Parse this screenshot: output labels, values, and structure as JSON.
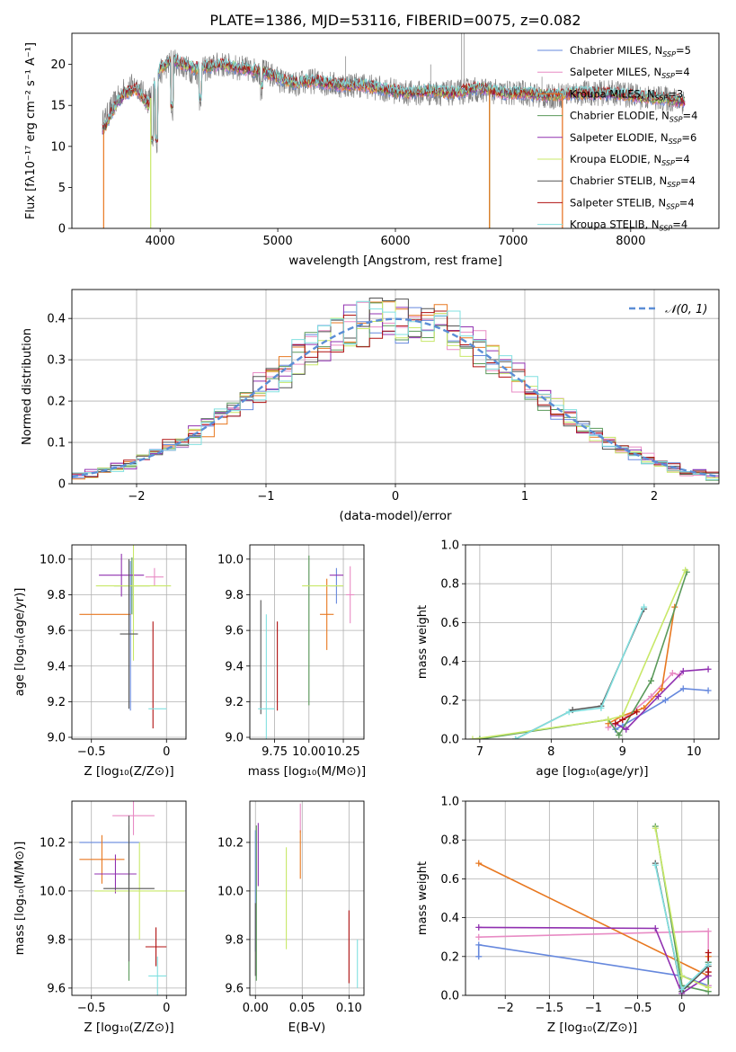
{
  "figure_title": "PLATE=1386, MJD=53116, FIBERID=0075, z=0.082",
  "model_names": [
    "Chabrier MILES",
    "Salpeter MILES",
    "Kroupa MILES",
    "Chabrier ELODIE",
    "Salpeter ELODIE",
    "Kroupa ELODIE",
    "Chabrier STELIB",
    "Salpeter STELIB",
    "Kroupa STELIB"
  ],
  "model_colors": [
    "#6688dd",
    "#e88bc4",
    "#e87820",
    "#5a9a5a",
    "#9030b0",
    "#c8e868",
    "#555555",
    "#b01010",
    "#80e0e0"
  ],
  "chart_data": [
    {
      "id": "spectrum",
      "type": "line",
      "xlabel": "wavelength [Angstrom, rest frame]",
      "ylabel": "Flux [fλ10⁻¹⁷ erg cm⁻² s⁻¹ A⁻¹]",
      "xlim": [
        3250,
        8750
      ],
      "ylim": [
        0,
        23.8
      ],
      "xticks": [
        4000,
        5000,
        6000,
        7000,
        8000
      ],
      "yticks": [
        0,
        5,
        10,
        15,
        20
      ],
      "grid": false,
      "legend_position": "right",
      "legend": [
        {
          "name": "Chabrier MILES",
          "nssp": "5"
        },
        {
          "name": "Salpeter MILES",
          "nssp": "4"
        },
        {
          "name": "Kroupa MILES",
          "nssp": "3"
        },
        {
          "name": "Chabrier ELODIE",
          "nssp": "4"
        },
        {
          "name": "Salpeter ELODIE",
          "nssp": "6"
        },
        {
          "name": "Kroupa ELODIE",
          "nssp": "4"
        },
        {
          "name": "Chabrier STELIB",
          "nssp": "4"
        },
        {
          "name": "Salpeter STELIB",
          "nssp": "4"
        },
        {
          "name": "Kroupa STELIB",
          "nssp": "4"
        }
      ],
      "nssp_label": "N",
      "nssp_sub": "SSP",
      "observed_continuum": [
        [
          3520,
          13
        ],
        [
          3600,
          15
        ],
        [
          3700,
          17
        ],
        [
          3800,
          17.5
        ],
        [
          3900,
          15.5
        ],
        [
          4000,
          19
        ],
        [
          4100,
          20.5
        ],
        [
          4300,
          19
        ],
        [
          4500,
          20
        ],
        [
          4700,
          19.5
        ],
        [
          4900,
          19
        ],
        [
          5100,
          17.5
        ],
        [
          5300,
          18
        ],
        [
          5500,
          17.5
        ],
        [
          5700,
          17.5
        ],
        [
          5900,
          17
        ],
        [
          6100,
          16.5
        ],
        [
          6300,
          16.5
        ],
        [
          6500,
          16.5
        ],
        [
          6700,
          17
        ],
        [
          6900,
          16.5
        ],
        [
          7100,
          16.5
        ],
        [
          7300,
          16
        ],
        [
          7500,
          16.5
        ],
        [
          7700,
          16.5
        ],
        [
          7900,
          16.5
        ],
        [
          8100,
          16
        ],
        [
          8300,
          15.8
        ],
        [
          8450,
          15.5
        ]
      ],
      "model_continuum": [
        [
          3520,
          12
        ],
        [
          3600,
          14.5
        ],
        [
          3700,
          16.5
        ],
        [
          3800,
          17
        ],
        [
          3900,
          15
        ],
        [
          4000,
          19.5
        ],
        [
          4100,
          20.5
        ],
        [
          4300,
          19.5
        ],
        [
          4500,
          20
        ],
        [
          4700,
          19.5
        ],
        [
          4900,
          19
        ],
        [
          5100,
          17.8
        ],
        [
          5300,
          18
        ],
        [
          5500,
          17.5
        ],
        [
          5700,
          17.5
        ],
        [
          5900,
          17
        ],
        [
          6100,
          16.5
        ],
        [
          6300,
          16.8
        ],
        [
          6500,
          16.5
        ],
        [
          6700,
          17.2
        ],
        [
          6900,
          16.5
        ],
        [
          7100,
          16.5
        ],
        [
          7300,
          16.2
        ],
        [
          7500,
          16.4
        ],
        [
          7700,
          16.5
        ],
        [
          7900,
          16.4
        ],
        [
          8100,
          16
        ],
        [
          8300,
          15.8
        ],
        [
          8450,
          15.5
        ]
      ],
      "absorption_lines": [
        [
          3934,
          9
        ],
        [
          3969,
          9
        ],
        [
          4102,
          13
        ],
        [
          4340,
          14
        ],
        [
          4861,
          15.5
        ],
        [
          5175,
          15.5
        ],
        [
          5890,
          15.3
        ],
        [
          6563,
          15.5
        ],
        [
          6717,
          15.5
        ]
      ],
      "emission_lines": [
        [
          6563,
          23.8
        ],
        [
          6583,
          23.8
        ],
        [
          5577,
          21
        ],
        [
          6300,
          20
        ],
        [
          7246,
          18.5
        ]
      ],
      "model_drops": [
        {
          "model": 2,
          "x": 3520,
          "to": 0
        },
        {
          "model": 5,
          "x": 3920,
          "to": 0
        },
        {
          "model": 3,
          "x": 6800,
          "to": 0
        },
        {
          "model": 2,
          "x": 6800,
          "to": 0
        },
        {
          "model": 1,
          "x": 7420,
          "to": 0
        },
        {
          "model": 2,
          "x": 7420,
          "to": 0
        }
      ]
    },
    {
      "id": "residuals",
      "type": "histogram",
      "xlabel": "(data-model)/error",
      "ylabel": "Normed distribution",
      "xlim": [
        -2.5,
        2.5
      ],
      "ylim": [
        0,
        0.47
      ],
      "xticks": [
        -2,
        -1,
        0,
        1,
        2
      ],
      "yticks": [
        0,
        0.1,
        0.2,
        0.3,
        0.4
      ],
      "grid": true,
      "legend_position": "top-right",
      "normal_label": "𝒩(0, 1)",
      "bin_width": 0.1,
      "bin_start": -2.5
    },
    {
      "id": "z-age",
      "type": "errorbar",
      "xlabel": "Z [log₁₀(Z/Z⊙)]",
      "ylabel": "age  [log₁₀(age/yr)]",
      "xlim": [
        -0.63,
        0.13
      ],
      "ylim": [
        8.99,
        10.08
      ],
      "xticks": [
        -0.5,
        0.0
      ],
      "yticks": [
        9.0,
        9.2,
        9.4,
        9.6,
        9.8,
        10.0
      ],
      "grid": true,
      "points": [
        {
          "x": -0.24,
          "y": 9.57,
          "xerr": 0.0,
          "yerr": 0.42
        },
        {
          "x": -0.08,
          "y": 9.9,
          "xerr": 0.06,
          "yerr": 0.05
        },
        {
          "x": -0.41,
          "y": 9.69,
          "xerr": 0.17,
          "yerr": 0.0
        },
        {
          "x": -0.23,
          "y": 9.85,
          "xerr": 0.12,
          "yerr": 0.16
        },
        {
          "x": -0.3,
          "y": 9.91,
          "xerr": 0.15,
          "yerr": 0.12
        },
        {
          "x": -0.22,
          "y": 9.85,
          "xerr": 0.25,
          "yerr": 0.42
        },
        {
          "x": -0.25,
          "y": 9.58,
          "xerr": 0.06,
          "yerr": 0.42
        },
        {
          "x": -0.09,
          "y": 9.35,
          "xerr": 0.0,
          "yerr": 0.3
        },
        {
          "x": -0.06,
          "y": 9.16,
          "xerr": 0.06,
          "yerr": 0.0
        }
      ]
    },
    {
      "id": "mass-age",
      "type": "errorbar",
      "xlabel": "mass [log₁₀(M/M⊙)]",
      "ylabel": "",
      "xlim": [
        9.57,
        10.4
      ],
      "ylim": [
        8.99,
        10.08
      ],
      "xticks": [
        9.75,
        10.0,
        10.25
      ],
      "xticklabels": [
        "9.75",
        "10.00",
        "10.25"
      ],
      "yticks": [
        9.0,
        9.2,
        9.4,
        9.6,
        9.8,
        10.0
      ],
      "grid": true,
      "points": [
        {
          "x": 10.2,
          "y": 9.85,
          "xerr": 0.05,
          "yerr": 0.1
        },
        {
          "x": 10.3,
          "y": 9.8,
          "xerr": 0.03,
          "yerr": 0.16
        },
        {
          "x": 10.13,
          "y": 9.69,
          "xerr": 0.05,
          "yerr": 0.2
        },
        {
          "x": 10.0,
          "y": 9.6,
          "xerr": 0.0,
          "yerr": 0.42
        },
        {
          "x": 10.2,
          "y": 9.91,
          "xerr": 0.05,
          "yerr": 0.0
        },
        {
          "x": 10.1,
          "y": 9.85,
          "xerr": 0.15,
          "yerr": 0.0
        },
        {
          "x": 9.65,
          "y": 9.45,
          "xerr": 0.0,
          "yerr": 0.32
        },
        {
          "x": 9.77,
          "y": 9.4,
          "xerr": 0.0,
          "yerr": 0.25
        },
        {
          "x": 9.69,
          "y": 9.16,
          "xerr": 0.06,
          "yerr": 0.53
        }
      ]
    },
    {
      "id": "age-massweight",
      "type": "line",
      "xlabel": "age  [log₁₀(age/yr)]",
      "ylabel": "mass weight",
      "xlim": [
        6.8,
        10.35
      ],
      "ylim": [
        0,
        1.0
      ],
      "xticks": [
        7,
        8,
        9,
        10
      ],
      "yticks": [
        0,
        0.2,
        0.4,
        0.6,
        0.8,
        1.0
      ],
      "grid": true,
      "series": [
        {
          "model": 0,
          "x": [
            8.9,
            9.0,
            9.6,
            9.85,
            10.2
          ],
          "y": [
            0.05,
            0.07,
            0.2,
            0.26,
            0.25
          ]
        },
        {
          "model": 1,
          "x": [
            8.8,
            9.0,
            9.4,
            9.7,
            9.8
          ],
          "y": [
            0.06,
            0.1,
            0.22,
            0.34,
            0.33
          ]
        },
        {
          "model": 2,
          "x": [
            8.8,
            9.0,
            9.3,
            9.55,
            9.73
          ],
          "y": [
            0.08,
            0.12,
            0.16,
            0.26,
            0.68
          ]
        },
        {
          "model": 3,
          "x": [
            7.0,
            8.8,
            8.95,
            9.4,
            9.9
          ],
          "y": [
            0.0,
            0.1,
            0.02,
            0.3,
            0.86
          ]
        },
        {
          "model": 4,
          "x": [
            8.9,
            9.05,
            9.5,
            9.85,
            10.2
          ],
          "y": [
            0.08,
            0.05,
            0.22,
            0.35,
            0.36
          ]
        },
        {
          "model": 5,
          "x": [
            6.9,
            8.8,
            9.0,
            9.88
          ],
          "y": [
            0.0,
            0.1,
            0.12,
            0.87
          ]
        },
        {
          "model": 6,
          "x": [
            7.5,
            8.3,
            8.7,
            9.3
          ],
          "y": [
            0.0,
            0.15,
            0.17,
            0.67
          ]
        },
        {
          "model": 7,
          "x": [
            8.9,
            9.0,
            9.2
          ],
          "y": [
            0.08,
            0.1,
            0.14
          ]
        },
        {
          "model": 8,
          "x": [
            7.5,
            8.25,
            8.7,
            9.3
          ],
          "y": [
            0.0,
            0.14,
            0.16,
            0.68
          ]
        }
      ]
    },
    {
      "id": "z-mass",
      "type": "errorbar",
      "xlabel": "Z [log₁₀(Z/Z⊙)]",
      "ylabel": "mass [log₁₀(M/M⊙)]",
      "xlim": [
        -0.63,
        0.13
      ],
      "ylim": [
        9.57,
        10.37
      ],
      "xticks": [
        -0.5,
        0.0
      ],
      "yticks": [
        9.6,
        9.8,
        10.0,
        10.2
      ],
      "grid": true,
      "points": [
        {
          "x": -0.38,
          "y": 10.2,
          "xerr": 0.2,
          "yerr": 0.0
        },
        {
          "x": -0.22,
          "y": 10.31,
          "xerr": 0.14,
          "yerr": 0.08
        },
        {
          "x": -0.43,
          "y": 10.13,
          "xerr": 0.15,
          "yerr": 0.1
        },
        {
          "x": -0.25,
          "y": 9.95,
          "xerr": 0.0,
          "yerr": 0.32
        },
        {
          "x": -0.34,
          "y": 10.07,
          "xerr": 0.14,
          "yerr": 0.08
        },
        {
          "x": -0.18,
          "y": 10.0,
          "xerr": 0.3,
          "yerr": 0.2
        },
        {
          "x": -0.25,
          "y": 10.01,
          "xerr": 0.17,
          "yerr": 0.3
        },
        {
          "x": -0.07,
          "y": 9.77,
          "xerr": 0.07,
          "yerr": 0.08
        },
        {
          "x": -0.06,
          "y": 9.65,
          "xerr": 0.06,
          "yerr": 0.08
        }
      ]
    },
    {
      "id": "ebv-mass",
      "type": "errorbar",
      "xlabel": "E(B-V)",
      "ylabel": "",
      "xlim": [
        -0.006,
        0.116
      ],
      "ylim": [
        9.57,
        10.37
      ],
      "xticks": [
        0.0,
        0.05,
        0.1
      ],
      "xticklabels": [
        "0.00",
        "0.05",
        "0.10"
      ],
      "yticks": [
        9.6,
        9.8,
        10.0,
        10.2
      ],
      "grid": true,
      "points": [
        {
          "x": 0.0,
          "y": 10.0,
          "xerr": 0.0,
          "yerr": 0.25
        },
        {
          "x": 0.048,
          "y": 10.3,
          "xerr": 0.0,
          "yerr": 0.06
        },
        {
          "x": 0.048,
          "y": 10.15,
          "xerr": 0.0,
          "yerr": 0.1
        },
        {
          "x": 0.001,
          "y": 9.95,
          "xerr": 0.0,
          "yerr": 0.32
        },
        {
          "x": 0.003,
          "y": 10.15,
          "xerr": 0.0,
          "yerr": 0.13
        },
        {
          "x": 0.033,
          "y": 9.97,
          "xerr": 0.0,
          "yerr": 0.21
        },
        {
          "x": 0.0,
          "y": 9.8,
          "xerr": 0.0,
          "yerr": 0.15
        },
        {
          "x": 0.1,
          "y": 9.77,
          "xerr": 0.0,
          "yerr": 0.15
        },
        {
          "x": 0.109,
          "y": 9.7,
          "xerr": 0.0,
          "yerr": 0.1
        }
      ]
    },
    {
      "id": "z-massweight",
      "type": "line",
      "xlabel": "Z [log₁₀(Z/Z⊙)]",
      "ylabel": "mass weight",
      "xlim": [
        -2.45,
        0.42
      ],
      "ylim": [
        0,
        1.0
      ],
      "xticks": [
        -2.0,
        -1.5,
        -1.0,
        -0.5,
        0.0
      ],
      "yticks": [
        0,
        0.2,
        0.4,
        0.6,
        0.8,
        1.0
      ],
      "grid": true,
      "series": [
        {
          "model": 0,
          "x": [
            -2.3,
            -2.3,
            0.0,
            0.3,
            0.3
          ],
          "y": [
            0.2,
            0.26,
            0.1,
            0.05,
            0.17
          ]
        },
        {
          "model": 1,
          "x": [
            -2.3,
            0.3,
            0.3
          ],
          "y": [
            0.3,
            0.33,
            0.05
          ]
        },
        {
          "model": 2,
          "x": [
            -2.3,
            0.3,
            0.3
          ],
          "y": [
            0.68,
            0.1,
            0.2
          ]
        },
        {
          "model": 3,
          "x": [
            -0.3,
            0.0,
            0.3,
            0.3
          ],
          "y": [
            0.87,
            0.05,
            0.02,
            0.17
          ]
        },
        {
          "model": 4,
          "x": [
            -2.3,
            -0.3,
            0.0,
            0.3
          ],
          "y": [
            0.35,
            0.345,
            0.01,
            0.1
          ]
        },
        {
          "model": 5,
          "x": [
            -0.3,
            0.0,
            0.3
          ],
          "y": [
            0.86,
            0.1,
            0.04
          ]
        },
        {
          "model": 6,
          "x": [
            -0.3,
            0.0,
            0.3
          ],
          "y": [
            0.68,
            0.02,
            0.15
          ]
        },
        {
          "model": 7,
          "x": [
            0.3,
            0.3
          ],
          "y": [
            0.12,
            0.22
          ]
        },
        {
          "model": 8,
          "x": [
            -0.3,
            0.0,
            0.3
          ],
          "y": [
            0.67,
            0.03,
            0.16
          ]
        }
      ]
    }
  ]
}
